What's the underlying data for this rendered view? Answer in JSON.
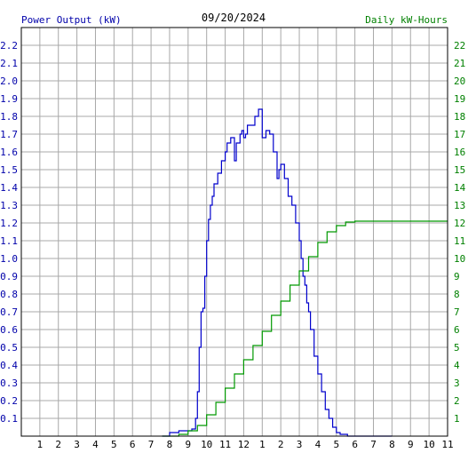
{
  "chart_data": {
    "type": "line",
    "title": "09/20/2024",
    "ylabel_left": "Power Output (kW)",
    "ylabel_right": "Daily kW-Hours",
    "grid": true,
    "colors": {
      "power": "#0000cc",
      "energy": "#009900",
      "grid": "#a8a8a8",
      "frame": "#000000"
    },
    "x_range": [
      0,
      23
    ],
    "x_ticks": [
      "1",
      "2",
      "3",
      "4",
      "5",
      "6",
      "7",
      "8",
      "9",
      "10",
      "11",
      "12",
      "1",
      "2",
      "3",
      "4",
      "5",
      "6",
      "7",
      "8",
      "9",
      "10",
      "11"
    ],
    "ylim_left": [
      0,
      2.3
    ],
    "ylim_right": [
      0,
      23
    ],
    "y_ticks_left": [
      "0.1",
      "0.2",
      "0.3",
      "0.4",
      "0.5",
      "0.6",
      "0.7",
      "0.8",
      "0.9",
      "1.0",
      "1.1",
      "1.2",
      "1.3",
      "1.4",
      "1.5",
      "1.6",
      "1.7",
      "1.8",
      "1.9",
      "2.0",
      "2.1",
      "2.2"
    ],
    "y_ticks_right": [
      "1",
      "2",
      "3",
      "4",
      "5",
      "6",
      "7",
      "8",
      "9",
      "10",
      "11",
      "12",
      "13",
      "14",
      "15",
      "16",
      "17",
      "18",
      "19",
      "20",
      "21",
      "22"
    ],
    "series": [
      {
        "name": "Power Output (kW)",
        "axis": "left",
        "x": [
          7.6,
          8.0,
          8.5,
          9.0,
          9.2,
          9.4,
          9.5,
          9.6,
          9.7,
          9.8,
          9.9,
          10.0,
          10.1,
          10.2,
          10.3,
          10.4,
          10.6,
          10.8,
          11.0,
          11.1,
          11.3,
          11.5,
          11.6,
          11.8,
          11.9,
          12.0,
          12.1,
          12.2,
          12.4,
          12.6,
          12.8,
          13.0,
          13.2,
          13.4,
          13.6,
          13.8,
          13.9,
          14.0,
          14.2,
          14.4,
          14.6,
          14.8,
          15.0,
          15.1,
          15.2,
          15.3,
          15.4,
          15.5,
          15.6,
          15.8,
          16.0,
          16.2,
          16.4,
          16.6,
          16.8,
          17.0,
          17.2,
          17.4,
          17.6,
          17.8,
          18.0,
          18.2,
          18.4,
          18.6,
          18.8,
          19.0,
          19.5,
          20.0
        ],
        "y": [
          0,
          0.02,
          0.03,
          0.03,
          0.04,
          0.1,
          0.25,
          0.5,
          0.7,
          0.72,
          0.9,
          1.1,
          1.22,
          1.3,
          1.35,
          1.42,
          1.48,
          1.55,
          1.6,
          1.65,
          1.68,
          1.55,
          1.65,
          1.7,
          1.72,
          1.68,
          1.7,
          1.75,
          1.75,
          1.8,
          1.84,
          1.68,
          1.72,
          1.7,
          1.6,
          1.45,
          1.5,
          1.53,
          1.45,
          1.35,
          1.3,
          1.2,
          1.1,
          1.0,
          0.9,
          0.85,
          0.75,
          0.7,
          0.6,
          0.45,
          0.35,
          0.25,
          0.15,
          0.1,
          0.05,
          0.02,
          0.01,
          0.01,
          0,
          0,
          0,
          0,
          0,
          0,
          0,
          0,
          0,
          0
        ]
      },
      {
        "name": "Daily kW-Hours",
        "axis": "right",
        "x": [
          7.6,
          8.5,
          9.0,
          9.5,
          10.0,
          10.5,
          11.0,
          11.5,
          12.0,
          12.5,
          13.0,
          13.5,
          14.0,
          14.5,
          15.0,
          15.5,
          16.0,
          16.5,
          17.0,
          17.5,
          18.0,
          18.5,
          19.0,
          20.0,
          23.0
        ],
        "y": [
          0,
          0.1,
          0.3,
          0.6,
          1.2,
          1.9,
          2.7,
          3.5,
          4.3,
          5.1,
          5.9,
          6.8,
          7.6,
          8.5,
          9.3,
          10.1,
          10.9,
          11.5,
          11.85,
          12.05,
          12.1,
          12.1,
          12.1,
          12.1,
          12.1
        ]
      }
    ]
  }
}
